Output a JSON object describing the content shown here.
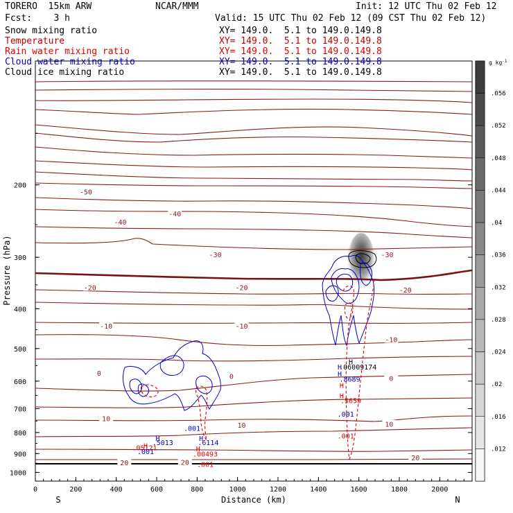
{
  "header": {
    "model": "TORERO  15km ARW",
    "org": "NCAR/MMM",
    "init": "Init: 12 UTC Thu 02 Feb 12",
    "fcst": "Fcst:    3 h",
    "valid": "Valid: 15 UTC Thu 02 Feb 12 (09 CST Thu 02 Feb 12)"
  },
  "legend": [
    {
      "label": "Snow mixing ratio",
      "xy": "XY= 149.0.  5.1 to 149.0.149.8",
      "color": "#000000",
      "xy_color": "#000000"
    },
    {
      "label": "Temperature",
      "xy": "XY= 149.0.  5.1 to 149.0.149.8",
      "color": "#c00000",
      "xy_color": "#c00000"
    },
    {
      "label": "Rain water mixing ratio",
      "xy": "XY= 149.0.  5.1 to 149.0.149.8",
      "color": "#e00000",
      "xy_color": "#e00000"
    },
    {
      "label": "Cloud water mixing ratio",
      "xy": "XY= 149.0.  5.1 to 149.0.149.8",
      "color": "#0000cc",
      "xy_color": "#0000cc"
    },
    {
      "label": "Cloud ice mixing ratio",
      "xy": "XY= 149.0.  5.1 to 149.0.149.8",
      "color": "#000000",
      "xy_color": "#000000"
    }
  ],
  "chart_data": {
    "type": "cross-section contour",
    "xlabel": "Distance (km)",
    "ylabel": "Pressure (hPa)",
    "xlim": [
      0,
      2160
    ],
    "ylim": [
      1050,
      100
    ],
    "y_scale": "log",
    "x_ticks": [
      0,
      200,
      400,
      600,
      800,
      1000,
      1200,
      1400,
      1600,
      1800,
      2000
    ],
    "y_ticks": [
      200,
      300,
      400,
      500,
      600,
      700,
      800,
      900,
      1000
    ],
    "x_end_labels": {
      "left": "S",
      "right": "N"
    },
    "colorbar": {
      "unit": "g kg",
      "unit_exp": "-1",
      "ticks": [
        ".056",
        ".052",
        ".048",
        ".044",
        ".04",
        ".036",
        ".032",
        ".028",
        ".024",
        ".02",
        ".016",
        ".012"
      ]
    },
    "temperature_labels": [
      {
        "text": "-50",
        "x": 250,
        "p": 208
      },
      {
        "text": "-40",
        "x": 420,
        "p": 246
      },
      {
        "text": "-40",
        "x": 690,
        "p": 235
      },
      {
        "text": "-30",
        "x": 890,
        "p": 295
      },
      {
        "text": "-30",
        "x": 1740,
        "p": 295
      },
      {
        "text": "-20",
        "x": 270,
        "p": 355
      },
      {
        "text": "-20",
        "x": 1020,
        "p": 355
      },
      {
        "text": "-20",
        "x": 1830,
        "p": 360
      },
      {
        "text": "-10",
        "x": 350,
        "p": 440
      },
      {
        "text": "-10",
        "x": 1020,
        "p": 440
      },
      {
        "text": "-10",
        "x": 1760,
        "p": 475
      },
      {
        "text": "0",
        "x": 315,
        "p": 573
      },
      {
        "text": "0",
        "x": 970,
        "p": 583
      },
      {
        "text": "0",
        "x": 1760,
        "p": 590
      },
      {
        "text": "10",
        "x": 350,
        "p": 739
      },
      {
        "text": "10",
        "x": 1020,
        "p": 767
      },
      {
        "text": "10",
        "x": 1750,
        "p": 763
      },
      {
        "text": "20",
        "x": 440,
        "p": 945
      },
      {
        "text": "20",
        "x": 740,
        "p": 943
      },
      {
        "text": "20",
        "x": 1880,
        "p": 920
      }
    ],
    "annotations": [
      {
        "text": "H",
        "x": 1560,
        "p": 538,
        "color": "#000000"
      },
      {
        "text": ".06009174",
        "x": 1595,
        "p": 553,
        "color": "#000000"
      },
      {
        "text": "H",
        "x": 1505,
        "p": 553,
        "color": "#0000cc"
      },
      {
        "text": "H",
        "x": 1505,
        "p": 575,
        "color": "#0000cc"
      },
      {
        "text": ".8689",
        "x": 1555,
        "p": 592,
        "color": "#0000cc"
      },
      {
        "text": "H",
        "x": 1515,
        "p": 614,
        "color": "#e00000"
      },
      {
        "text": "H",
        "x": 1515,
        "p": 650,
        "color": "#e00000"
      },
      {
        "text": ".5659",
        "x": 1560,
        "p": 668,
        "color": "#e00000"
      },
      {
        "text": ".001",
        "x": 1535,
        "p": 720,
        "color": "#0000cc"
      },
      {
        "text": ".001",
        "x": 1535,
        "p": 815,
        "color": "#e00000"
      },
      {
        "text": ".001",
        "x": 775,
        "p": 780,
        "color": "#0000cc"
      },
      {
        "text": "H",
        "x": 605,
        "p": 825,
        "color": "#0000cc"
      },
      {
        "text": "H",
        "x": 820,
        "p": 825,
        "color": "#0000cc"
      },
      {
        "text": ".5013",
        "x": 630,
        "p": 845,
        "color": "#0000cc"
      },
      {
        "text": ".6114",
        "x": 855,
        "p": 845,
        "color": "#0000cc"
      },
      {
        "text": "H",
        "x": 545,
        "p": 860,
        "color": "#e00000"
      },
      {
        "text": ".05121",
        "x": 540,
        "p": 870,
        "color": "#e00000"
      },
      {
        "text": ".001",
        "x": 545,
        "p": 888,
        "color": "#0000cc"
      },
      {
        "text": "H",
        "x": 805,
        "p": 875,
        "color": "#e00000"
      },
      {
        "text": ".00493",
        "x": 840,
        "p": 900,
        "color": "#e00000"
      },
      {
        "text": ".001",
        "x": 840,
        "p": 955,
        "color": "#e00000"
      }
    ]
  }
}
